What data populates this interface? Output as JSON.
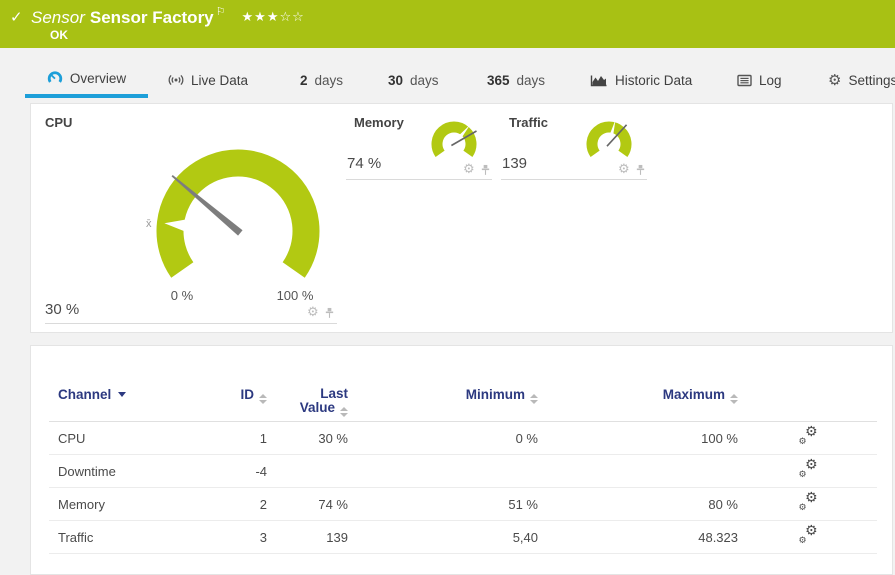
{
  "header": {
    "check_icon": "✓",
    "kind_label": "Sensor",
    "title": "Sensor Factory",
    "flag_icon": "⚐",
    "rating_filled": 3,
    "rating_total": 5,
    "status": "OK"
  },
  "tabs": {
    "overview": "Overview",
    "live_data": "Live Data",
    "d2_num": "2",
    "d2_unit": "days",
    "d30_num": "30",
    "d30_unit": "days",
    "d365_num": "365",
    "d365_unit": "days",
    "historic": "Historic Data",
    "log": "Log",
    "settings": "Settings",
    "gear_glyph": "⚙"
  },
  "gauges": {
    "cpu": {
      "title": "CPU",
      "value": "30 %",
      "needle_pct": 30,
      "scale_min": "0 %",
      "scale_max": "100 %",
      "mean_label": "x̄"
    },
    "memory": {
      "title": "Memory",
      "value": "74 %",
      "needle_pct": 74
    },
    "traffic": {
      "title": "Traffic",
      "value": "139",
      "needle_pct": 67
    }
  },
  "icons": {
    "gear_glyph": "⚙"
  },
  "table": {
    "headers": {
      "channel": "Channel",
      "id": "ID",
      "last_line1": "Last",
      "last_line2": "Value",
      "minimum": "Minimum",
      "maximum": "Maximum"
    },
    "rows": [
      {
        "channel": "CPU",
        "id": "1",
        "last": "30 %",
        "min": "0 %",
        "max": "100 %"
      },
      {
        "channel": "Downtime",
        "id": "-4",
        "last": "",
        "min": "",
        "max": ""
      },
      {
        "channel": "Memory",
        "id": "2",
        "last": "74 %",
        "min": "51 %",
        "max": "80 %"
      },
      {
        "channel": "Traffic",
        "id": "3",
        "last": "139",
        "min": "5,40",
        "max": "48.323"
      }
    ]
  },
  "colors": {
    "brand_green": "#a8c114",
    "gauge_green": "#b2c912",
    "accent_blue": "#1d9fd9",
    "table_header_blue": "#2c3980"
  },
  "chart_data": [
    {
      "type": "gauge",
      "title": "CPU",
      "value": 30,
      "unit": "%",
      "axis_min": 0,
      "axis_max": 100,
      "mean_marker_pct": 12
    },
    {
      "type": "gauge",
      "title": "Memory",
      "value": 74,
      "unit": "%",
      "mean_marker_pct": 66
    },
    {
      "type": "gauge",
      "title": "Traffic",
      "value": 139,
      "needle_pct_of_scale": 67
    }
  ]
}
